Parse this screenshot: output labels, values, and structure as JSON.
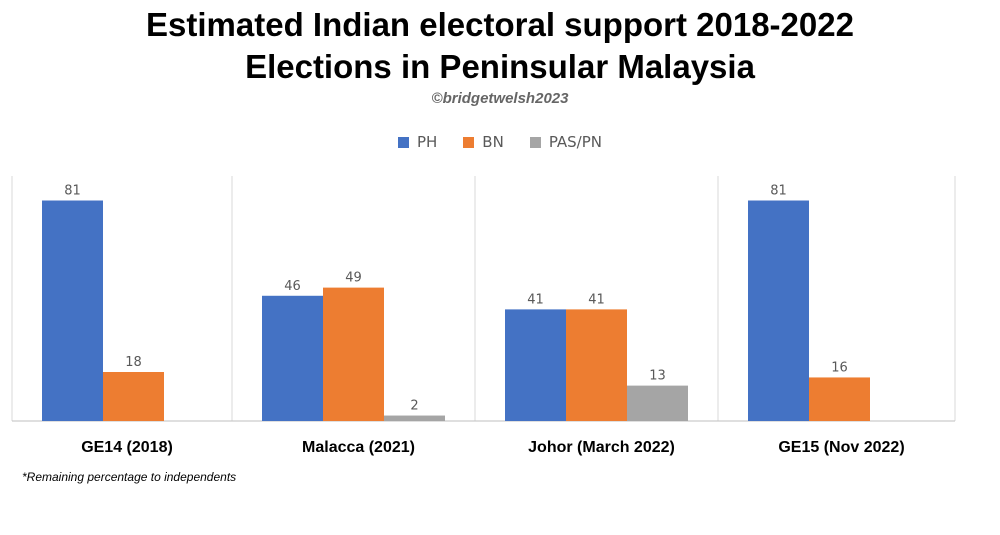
{
  "title_line1": "Estimated Indian electoral support 2018-2022",
  "title_line2": "Elections in Peninsular Malaysia",
  "credit": "©bridgetwelsh2023",
  "footnote": "*Remaining percentage to independents",
  "chart_data": {
    "type": "bar",
    "categories": [
      "GE14 (2018)",
      "Malacca (2021)",
      "Johor (March 2022)",
      "GE15 (Nov 2022)"
    ],
    "series": [
      {
        "name": "PH",
        "color": "#4472C4",
        "values": [
          81,
          46,
          41,
          81
        ]
      },
      {
        "name": "BN",
        "color": "#ED7D31",
        "values": [
          18,
          49,
          41,
          16
        ]
      },
      {
        "name": "PAS/PN",
        "color": "#A5A5A5",
        "values": [
          null,
          2,
          13,
          null
        ]
      }
    ],
    "ylim": [
      0,
      90
    ],
    "data_labels": true,
    "legend": "top-center",
    "grid": false
  }
}
